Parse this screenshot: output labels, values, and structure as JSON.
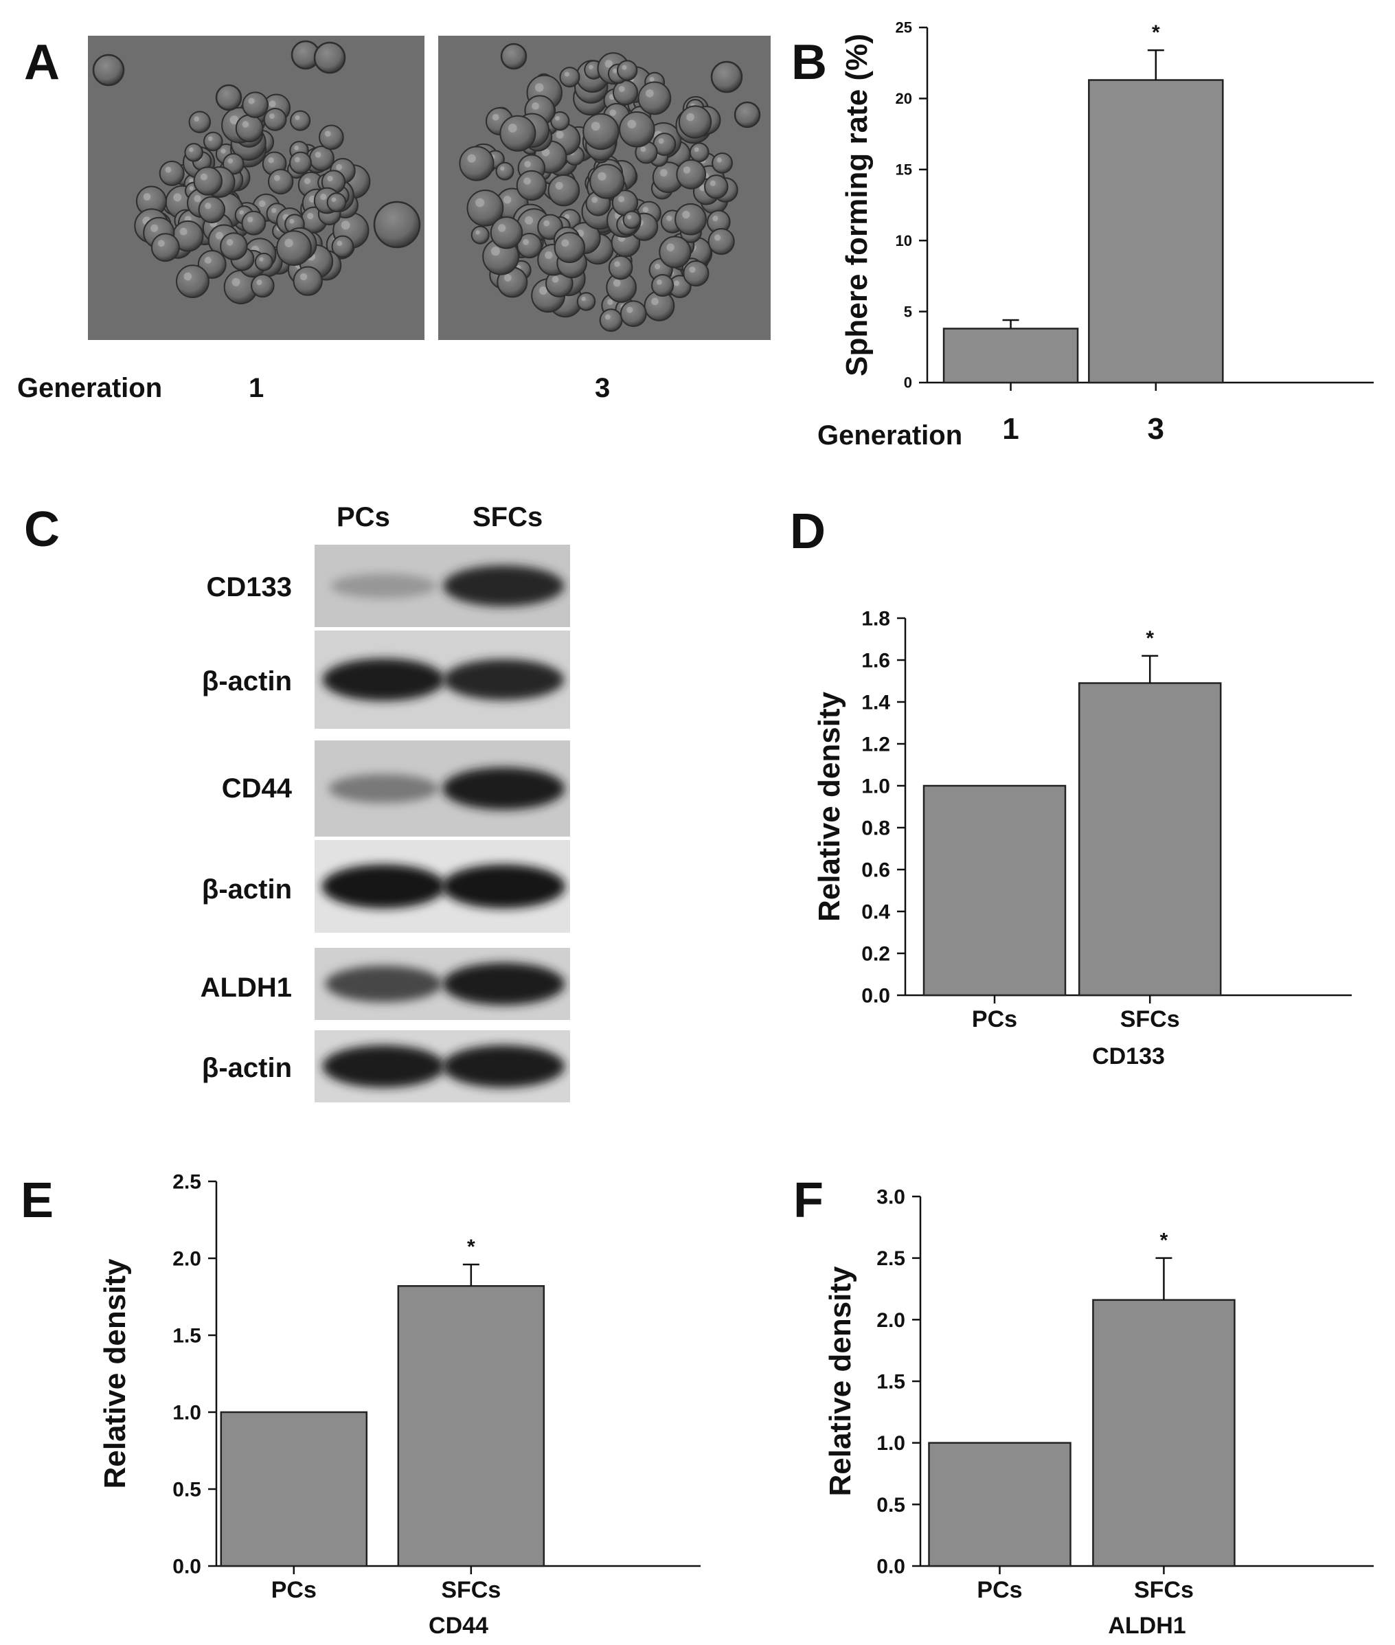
{
  "panels": {
    "A": {
      "letter": "A",
      "row_label": "Generation",
      "image_labels": [
        "1",
        "3"
      ]
    },
    "C": {
      "letter": "C",
      "columns": [
        "PCs",
        "SFCs"
      ],
      "rows": [
        {
          "label": "CD133",
          "band_strength": [
            0.35,
            0.9
          ]
        },
        {
          "label": "β-actin",
          "band_strength": [
            0.95,
            0.9
          ]
        },
        {
          "label": "CD44",
          "band_strength": [
            0.5,
            0.95
          ]
        },
        {
          "label": "β-actin",
          "band_strength": [
            1.0,
            1.0
          ]
        },
        {
          "label": "ALDH1",
          "band_strength": [
            0.75,
            0.95
          ]
        },
        {
          "label": "β-actin",
          "band_strength": [
            0.95,
            0.95
          ]
        }
      ]
    }
  },
  "chart_data": [
    {
      "id": "B",
      "letter": "B",
      "type": "bar",
      "categories": [
        "1",
        "3"
      ],
      "values": [
        3.8,
        21.3
      ],
      "errors": [
        0.6,
        2.1
      ],
      "significance": [
        "",
        "*"
      ],
      "xlabel_prefix": "Generation",
      "xlabel": "",
      "ylabel": "Sphere forming rate (%)",
      "ylim": [
        0,
        25
      ],
      "yticks": [
        0,
        5,
        10,
        15,
        20,
        25
      ],
      "ytick_labels": [
        "0",
        "5",
        "10",
        "15",
        "20",
        "25"
      ],
      "bar_color": "#8c8c8c"
    },
    {
      "id": "D",
      "letter": "D",
      "type": "bar",
      "categories": [
        "PCs",
        "SFCs"
      ],
      "values": [
        1.0,
        1.49
      ],
      "errors": [
        0,
        0.13
      ],
      "significance": [
        "",
        "*"
      ],
      "xlabel": "CD133",
      "ylabel": "Relative density",
      "ylim": [
        0,
        1.8
      ],
      "yticks": [
        0,
        0.2,
        0.4,
        0.6,
        0.8,
        1.0,
        1.2,
        1.4,
        1.6,
        1.8
      ],
      "ytick_labels": [
        "0.0",
        "0.2",
        "0.4",
        "0.6",
        "0.8",
        "1.0",
        "1.2",
        "1.4",
        "1.6",
        "1.8"
      ],
      "bar_color": "#8c8c8c"
    },
    {
      "id": "E",
      "letter": "E",
      "type": "bar",
      "categories": [
        "PCs",
        "SFCs"
      ],
      "values": [
        1.0,
        1.82
      ],
      "errors": [
        0,
        0.14
      ],
      "significance": [
        "",
        "*"
      ],
      "xlabel": "CD44",
      "ylabel": "Relative density",
      "ylim": [
        0,
        2.5
      ],
      "yticks": [
        0,
        0.5,
        1.0,
        1.5,
        2.0,
        2.5
      ],
      "ytick_labels": [
        "0.0",
        "0.5",
        "1.0",
        "1.5",
        "2.0",
        "2.5"
      ],
      "bar_color": "#8c8c8c"
    },
    {
      "id": "F",
      "letter": "F",
      "type": "bar",
      "categories": [
        "PCs",
        "SFCs"
      ],
      "values": [
        1.0,
        2.16
      ],
      "errors": [
        0,
        0.34
      ],
      "significance": [
        "",
        "*"
      ],
      "xlabel": "ALDH1",
      "ylabel": "Relative density",
      "ylim": [
        0,
        3.0
      ],
      "yticks": [
        0,
        0.5,
        1.0,
        1.5,
        2.0,
        2.5,
        3.0
      ],
      "ytick_labels": [
        "0.0",
        "0.5",
        "1.0",
        "1.5",
        "2.0",
        "2.5",
        "3.0"
      ],
      "bar_color": "#8c8c8c"
    }
  ]
}
